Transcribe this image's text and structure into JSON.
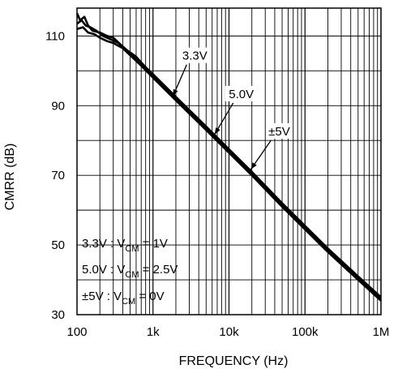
{
  "chart_data": {
    "type": "line",
    "title": "",
    "xlabel": "FREQUENCY (Hz)",
    "ylabel": "CMRR (dB)",
    "x_scale": "log",
    "xlim": [
      100,
      1000000
    ],
    "ylim": [
      30,
      118
    ],
    "grid": true,
    "x_ticks": [
      100,
      1000,
      10000,
      100000,
      1000000
    ],
    "x_tick_labels": [
      "100",
      "1k",
      "10k",
      "100k",
      "1M"
    ],
    "y_ticks": [
      30,
      50,
      70,
      90,
      110
    ],
    "y_tick_labels": [
      "30",
      "50",
      "70",
      "90",
      "110"
    ],
    "series": [
      {
        "name": "3.3V",
        "x": [
          100,
          110,
          125,
          140,
          160,
          200,
          250,
          300,
          400,
          500,
          700,
          1000,
          2000,
          5000,
          10000,
          20000,
          50000,
          100000,
          200000,
          500000,
          1000000
        ],
        "y": [
          116.5,
          114.5,
          115.5,
          113.0,
          111.5,
          111.0,
          110.0,
          109.5,
          107.0,
          105.0,
          101.5,
          98.5,
          92.0,
          83.5,
          77.0,
          70.5,
          61.5,
          55.0,
          48.5,
          40.5,
          34.5
        ]
      },
      {
        "name": "5.0V",
        "x": [
          100,
          115,
          130,
          150,
          180,
          220,
          280,
          350,
          450,
          600,
          800,
          1000,
          2000,
          5000,
          10000,
          20000,
          50000,
          100000,
          200000,
          500000,
          1000000
        ],
        "y": [
          113.5,
          114.5,
          113.0,
          112.5,
          111.5,
          110.0,
          109.0,
          108.0,
          106.0,
          104.0,
          101.0,
          99.0,
          92.5,
          84.0,
          77.5,
          71.0,
          62.0,
          55.5,
          49.0,
          41.0,
          35.0
        ]
      },
      {
        "name": "±5V",
        "x": [
          100,
          120,
          140,
          170,
          200,
          250,
          300,
          400,
          500,
          700,
          1000,
          2000,
          5000,
          10000,
          20000,
          50000,
          100000,
          200000,
          500000,
          1000000
        ],
        "y": [
          112.0,
          112.5,
          111.0,
          110.5,
          109.5,
          108.5,
          108.0,
          106.5,
          104.5,
          101.5,
          98.0,
          91.5,
          83.0,
          76.5,
          70.0,
          61.0,
          54.5,
          48.0,
          40.0,
          34.0
        ]
      }
    ],
    "annotations": [
      {
        "label": "3.3V",
        "target_x": 1700,
        "target_y": 92
      },
      {
        "label": "5.0V",
        "target_x": 6000,
        "target_y": 81
      },
      {
        "label": "±5V",
        "target_x": 18000,
        "target_y": 71
      }
    ],
    "legend_text": {
      "line1_main": "3.3V : V",
      "line1_sub": "CM",
      "line1_tail": " = 1V",
      "line2_main": "5.0V : V",
      "line2_sub": "CM",
      "line2_tail": " = 2.5V",
      "line3_main": "±5V : V",
      "line3_sub": "CM",
      "line3_tail": " = 0V"
    },
    "colors": {
      "line": "#000000",
      "grid": "#000000",
      "background": "#ffffff"
    }
  }
}
